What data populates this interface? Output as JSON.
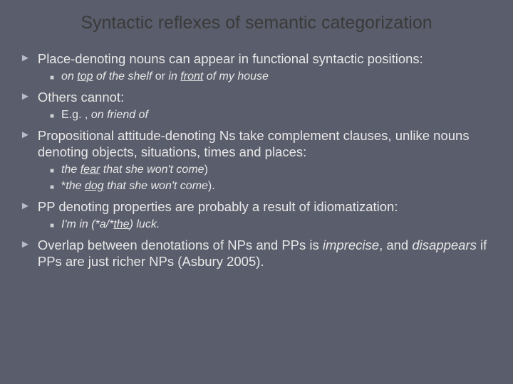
{
  "title": "Syntactic reflexes of semantic categorization",
  "colors": {
    "background": "#5a5d6b",
    "title_color": "#3a3a3a",
    "body_text": "#e8e8e8",
    "main_bullet": "#b8bac5",
    "sub_bullet": "#cfcfd6"
  },
  "typography": {
    "title_fontsize": 25,
    "main_fontsize": 18.5,
    "sub_fontsize": 16,
    "font_family": "Verdana"
  },
  "items": [
    {
      "text": "Place-denoting nouns can appear in functional syntactic positions:",
      "subs": [
        {
          "runs": [
            {
              "t": "on ",
              "i": true
            },
            {
              "t": "top",
              "i": true,
              "u": true
            },
            {
              "t": " of the shelf",
              "i": true
            },
            {
              "t": " or "
            },
            {
              "t": "in ",
              "i": true
            },
            {
              "t": "front",
              "i": true,
              "u": true
            },
            {
              "t": " of my house",
              "i": true
            }
          ]
        }
      ]
    },
    {
      "text": "Others cannot:",
      "subs": [
        {
          "runs": [
            {
              "t": "E.g. , "
            },
            {
              "t": "on friend of",
              "i": true
            }
          ]
        }
      ]
    },
    {
      "text": "Propositional attitude-denoting Ns take complement clauses, unlike nouns denoting objects, situations, times and places:",
      "subs": [
        {
          "runs": [
            {
              "t": "the ",
              "i": true
            },
            {
              "t": "fear",
              "i": true,
              "u": true
            },
            {
              "t": " that she won't come",
              "i": true
            },
            {
              "t": ")"
            }
          ]
        },
        {
          "runs": [
            {
              "t": "*"
            },
            {
              "t": "the ",
              "i": true
            },
            {
              "t": "dog",
              "i": true,
              "u": true
            },
            {
              "t": " that she won't come",
              "i": true
            },
            {
              "t": ")."
            }
          ]
        }
      ]
    },
    {
      "text": "PP denoting properties are probably a result of idiomatization:",
      "subs": [
        {
          "runs": [
            {
              "t": "I'm in (*a/*",
              "i": true
            },
            {
              "t": "the",
              "i": true,
              "u": true
            },
            {
              "t": ") luck.",
              "i": true
            }
          ]
        }
      ]
    },
    {
      "runs": [
        {
          "t": "Overlap between denotations of NPs and PPs is "
        },
        {
          "t": "imprecise",
          "i": true
        },
        {
          "t": ", and "
        },
        {
          "t": "disappears",
          "i": true
        },
        {
          "t": " if PPs are just richer NPs (Asbury 2005)."
        }
      ],
      "subs": []
    }
  ]
}
